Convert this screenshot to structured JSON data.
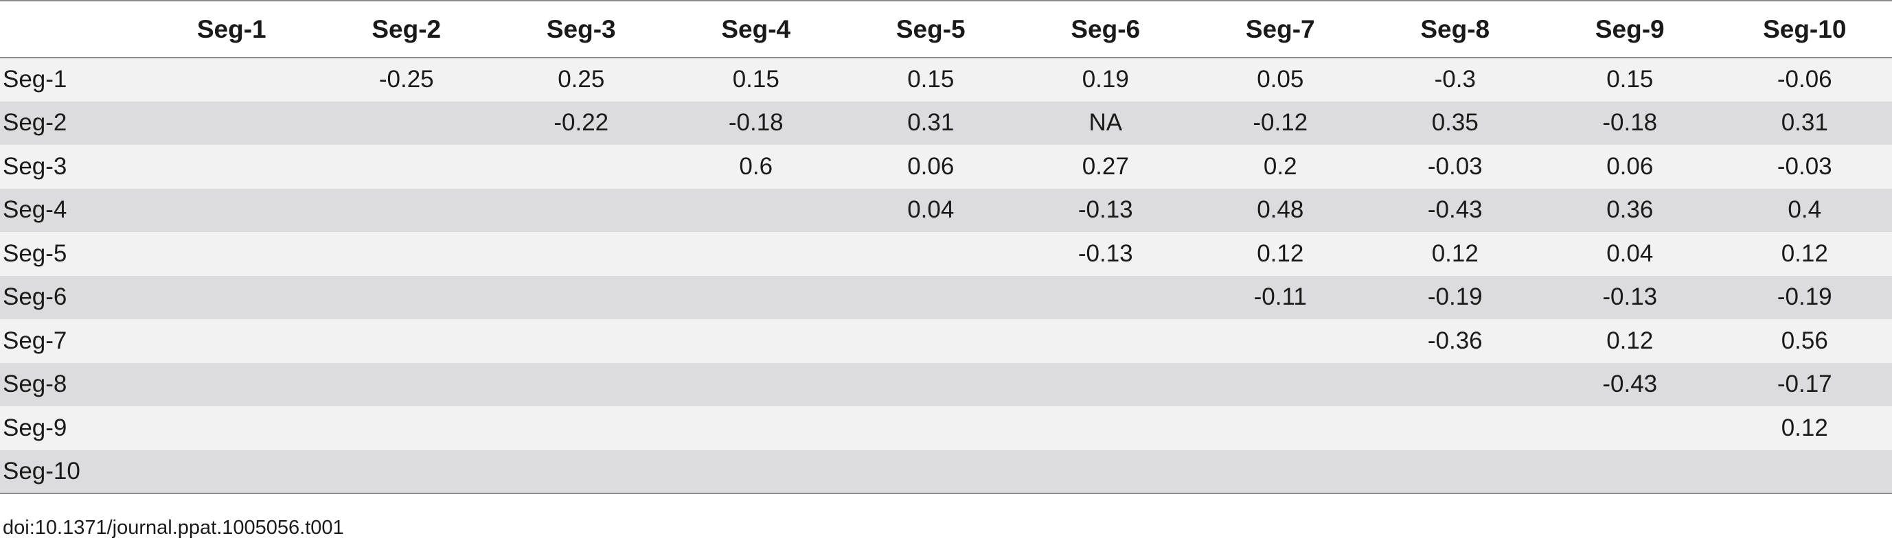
{
  "table": {
    "columns": [
      "Seg-1",
      "Seg-2",
      "Seg-3",
      "Seg-4",
      "Seg-5",
      "Seg-6",
      "Seg-7",
      "Seg-8",
      "Seg-9",
      "Seg-10"
    ],
    "rows": [
      {
        "label": "Seg-1",
        "cells": [
          "",
          "-0.25",
          "0.25",
          "0.15",
          "0.15",
          "0.19",
          "0.05",
          "-0.3",
          "0.15",
          "-0.06"
        ]
      },
      {
        "label": "Seg-2",
        "cells": [
          "",
          "",
          "-0.22",
          "-0.18",
          "0.31",
          "NA",
          "-0.12",
          "0.35",
          "-0.18",
          "0.31"
        ]
      },
      {
        "label": "Seg-3",
        "cells": [
          "",
          "",
          "",
          "0.6",
          "0.06",
          "0.27",
          "0.2",
          "-0.03",
          "0.06",
          "-0.03"
        ]
      },
      {
        "label": "Seg-4",
        "cells": [
          "",
          "",
          "",
          "",
          "0.04",
          "-0.13",
          "0.48",
          "-0.43",
          "0.36",
          "0.4"
        ]
      },
      {
        "label": "Seg-5",
        "cells": [
          "",
          "",
          "",
          "",
          "",
          "-0.13",
          "0.12",
          "0.12",
          "0.04",
          "0.12"
        ]
      },
      {
        "label": "Seg-6",
        "cells": [
          "",
          "",
          "",
          "",
          "",
          "",
          "-0.11",
          "-0.19",
          "-0.13",
          "-0.19"
        ]
      },
      {
        "label": "Seg-7",
        "cells": [
          "",
          "",
          "",
          "",
          "",
          "",
          "",
          "-0.36",
          "0.12",
          "0.56"
        ]
      },
      {
        "label": "Seg-8",
        "cells": [
          "",
          "",
          "",
          "",
          "",
          "",
          "",
          "",
          "-0.43",
          "-0.17"
        ]
      },
      {
        "label": "Seg-9",
        "cells": [
          "",
          "",
          "",
          "",
          "",
          "",
          "",
          "",
          "",
          "0.12"
        ]
      },
      {
        "label": "Seg-10",
        "cells": [
          "",
          "",
          "",
          "",
          "",
          "",
          "",
          "",
          "",
          ""
        ]
      }
    ]
  },
  "footer": {
    "doi": "doi:10.1371/journal.ppat.1005056.t001"
  }
}
